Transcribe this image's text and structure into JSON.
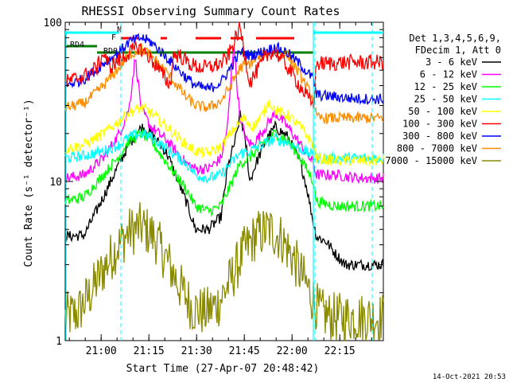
{
  "chart_data": {
    "type": "line",
    "title": "RHESSI Observing Summary Count Rates",
    "xlabel": "Start Time (27-Apr-07 20:48:42)",
    "ylabel": "Count Rate (s⁻¹ detector⁻¹)",
    "x_unit": "minutes after 20:48:42",
    "xlim": [
      0,
      100
    ],
    "ylim": [
      1,
      100
    ],
    "yscale": "log",
    "x_ticks": [
      {
        "value": 11.3,
        "label": "21:00"
      },
      {
        "value": 26.3,
        "label": "21:15"
      },
      {
        "value": 41.3,
        "label": "21:30"
      },
      {
        "value": 56.3,
        "label": "21:45"
      },
      {
        "value": 71.3,
        "label": "22:00"
      },
      {
        "value": 86.3,
        "label": "22:15"
      }
    ],
    "y_ticks": [
      {
        "value": 1,
        "label": "1"
      },
      {
        "value": 10,
        "label": "10"
      },
      {
        "value": 100,
        "label": "100"
      }
    ],
    "legend": {
      "position": "right",
      "header": [
        "Det 1,3,4,5,6,9,",
        "FDecim 1, Att 0"
      ]
    },
    "series": [
      {
        "name": "3 - 6 keV",
        "color": "#000000",
        "x": [
          0,
          6,
          12,
          17,
          20,
          24,
          27,
          32,
          38,
          41,
          45,
          49,
          51,
          54,
          55,
          57,
          58,
          60,
          63,
          66,
          70,
          74,
          76,
          78,
          79,
          82,
          85,
          88,
          92,
          96,
          100
        ],
        "y": [
          4.5,
          4.6,
          8.0,
          13.0,
          17.0,
          22.0,
          20.0,
          15.0,
          7.5,
          5.0,
          5.0,
          6.0,
          12.0,
          20.0,
          27.0,
          16.0,
          10.0,
          13.0,
          18.0,
          22.0,
          19.0,
          13.0,
          9.0,
          5.5,
          4.5,
          4.2,
          3.5,
          3.0,
          3.0,
          3.0,
          3.0
        ]
      },
      {
        "name": "6 - 12 keV",
        "color": "#ff00ff",
        "x": [
          0,
          6,
          12,
          17,
          20,
          22,
          24,
          27,
          32,
          38,
          41,
          45,
          49,
          51,
          53,
          54,
          55,
          57,
          59,
          63,
          66,
          70,
          74,
          78,
          79,
          85,
          92,
          100
        ],
        "y": [
          10.5,
          11.0,
          14.0,
          20.0,
          28.0,
          60.0,
          28.0,
          22.0,
          18.0,
          13.0,
          12.0,
          12.0,
          14.0,
          22.0,
          75.0,
          40.0,
          25.0,
          18.0,
          17.0,
          22.0,
          27.0,
          22.0,
          17.0,
          13.0,
          11.0,
          11.0,
          10.5,
          10.5
        ]
      },
      {
        "name": "12 - 25 keV",
        "color": "#00ff00",
        "x": [
          0,
          6,
          12,
          17,
          20,
          24,
          27,
          32,
          38,
          41,
          45,
          49,
          52,
          55,
          58,
          63,
          66,
          70,
          74,
          78,
          79,
          85,
          92,
          100
        ],
        "y": [
          7.5,
          8.0,
          11.0,
          14.5,
          18.0,
          20.0,
          18.0,
          13.0,
          9.0,
          7.0,
          6.5,
          7.0,
          9.5,
          13.0,
          14.0,
          18.0,
          20.0,
          18.0,
          14.0,
          10.0,
          7.5,
          7.0,
          7.0,
          7.0
        ]
      },
      {
        "name": "25 - 50 keV",
        "color": "#00ffff",
        "x": [
          0,
          6,
          12,
          17,
          20,
          24,
          27,
          32,
          38,
          41,
          45,
          49,
          52,
          55,
          58,
          63,
          66,
          70,
          74,
          78,
          79,
          85,
          92,
          100
        ],
        "y": [
          14.0,
          14.5,
          15.5,
          17.0,
          19.0,
          20.0,
          19.0,
          16.0,
          13.0,
          11.0,
          10.5,
          11.0,
          13.0,
          15.0,
          15.5,
          17.5,
          18.5,
          17.5,
          16.0,
          14.5,
          14.0,
          14.0,
          14.0,
          14.0
        ]
      },
      {
        "name": "50 - 100 keV",
        "color": "#ffff00",
        "x": [
          0,
          6,
          12,
          17,
          20,
          24,
          27,
          32,
          38,
          41,
          45,
          49,
          52,
          56,
          59,
          62,
          64,
          66,
          70,
          74,
          78,
          79,
          85,
          92,
          100
        ],
        "y": [
          16.0,
          17.0,
          20.0,
          24.0,
          27.0,
          29.0,
          27.0,
          22.0,
          17.0,
          15.5,
          15.0,
          16.5,
          20.0,
          25.0,
          22.0,
          26.0,
          32.0,
          28.0,
          26.0,
          22.0,
          17.0,
          14.0,
          13.5,
          13.5,
          13.5
        ]
      },
      {
        "name": "100 - 300 keV",
        "color": "#ff0000",
        "x": [
          0,
          6,
          10,
          12,
          14,
          17,
          20,
          23,
          26,
          29,
          33,
          34,
          36,
          39,
          42,
          45,
          49,
          51,
          55,
          58,
          61,
          63,
          65,
          67,
          70,
          73,
          76,
          78,
          79,
          82,
          88,
          92,
          96,
          100
        ],
        "y": [
          42.0,
          46.0,
          52.0,
          64.0,
          52.0,
          58.0,
          64.0,
          70.0,
          62.0,
          52.0,
          40.0,
          62.0,
          62.0,
          55.0,
          52.0,
          52.0,
          55.0,
          60.0,
          92.0,
          42.0,
          52.0,
          60.0,
          66.0,
          62.0,
          52.0,
          42.0,
          34.0,
          30.0,
          55.0,
          55.0,
          56.0,
          56.0,
          56.0,
          56.0
        ]
      },
      {
        "name": "300 - 800 keV",
        "color": "#0000ff",
        "x": [
          0,
          6,
          12,
          17,
          20,
          24,
          27,
          32,
          38,
          41,
          45,
          49,
          52,
          55,
          58,
          63,
          66,
          70,
          74,
          78,
          79,
          85,
          92,
          100
        ],
        "y": [
          40.0,
          44.0,
          55.0,
          65.0,
          75.0,
          80.0,
          75.0,
          60.0,
          45.0,
          40.0,
          38.0,
          42.0,
          52.0,
          65.0,
          62.0,
          66.0,
          70.0,
          64.0,
          54.0,
          44.0,
          35.0,
          34.0,
          33.0,
          33.0
        ]
      },
      {
        "name": "800 - 7000 keV",
        "color": "#ff8c00",
        "x": [
          0,
          6,
          12,
          17,
          20,
          24,
          27,
          32,
          38,
          41,
          45,
          49,
          52,
          55,
          58,
          63,
          66,
          70,
          74,
          78,
          79,
          85,
          92,
          100
        ],
        "y": [
          29.0,
          31.0,
          40.0,
          52.0,
          62.0,
          68.0,
          62.0,
          48.0,
          34.0,
          30.0,
          29.0,
          32.0,
          40.0,
          52.0,
          55.0,
          64.0,
          68.0,
          62.0,
          46.0,
          33.0,
          25.0,
          25.0,
          25.0,
          25.0
        ]
      },
      {
        "name": "7000 - 15000 keV",
        "color": "#8b8b00",
        "x": [
          0,
          4,
          8,
          12,
          16,
          20,
          24,
          28,
          32,
          36,
          40,
          44,
          48,
          52,
          56,
          60,
          64,
          68,
          72,
          76,
          80,
          84,
          88,
          92,
          96,
          100
        ],
        "y": [
          1.4,
          1.5,
          2.0,
          2.8,
          3.8,
          4.8,
          5.2,
          4.5,
          3.2,
          2.2,
          1.6,
          1.5,
          1.7,
          2.4,
          3.6,
          4.6,
          5.0,
          4.4,
          3.2,
          2.2,
          1.5,
          1.4,
          1.4,
          1.4,
          1.4,
          1.4
        ]
      }
    ],
    "status_bars": [
      {
        "label": "N",
        "color": "#00ffff",
        "segments": [
          [
            0,
            17
          ],
          [
            78,
            100
          ]
        ]
      },
      {
        "label": "F",
        "color": "#ff0000",
        "segments": [
          [
            17.5,
            23
          ],
          [
            30,
            32
          ],
          [
            41,
            49
          ],
          [
            52,
            56
          ],
          [
            60,
            72
          ]
        ]
      },
      {
        "label": "RD0",
        "color": "#008000",
        "segments": [
          [
            10,
            78
          ]
        ]
      },
      {
        "label": "RD4",
        "color": "#008000",
        "segments": [
          [
            0,
            10
          ]
        ]
      }
    ],
    "vertical_lines": [
      {
        "x": 17.5,
        "color": "#00ffff",
        "style": "dashed"
      },
      {
        "x": 78.5,
        "color": "#00ffff",
        "style": "dashed"
      },
      {
        "x": 96.5,
        "color": "#00ffff",
        "style": "dashed"
      }
    ],
    "solid_marker_lines": [
      {
        "x": 78.0,
        "color": "#00ffff"
      }
    ],
    "footer_timestamp": "14-Oct-2021 20:53"
  }
}
